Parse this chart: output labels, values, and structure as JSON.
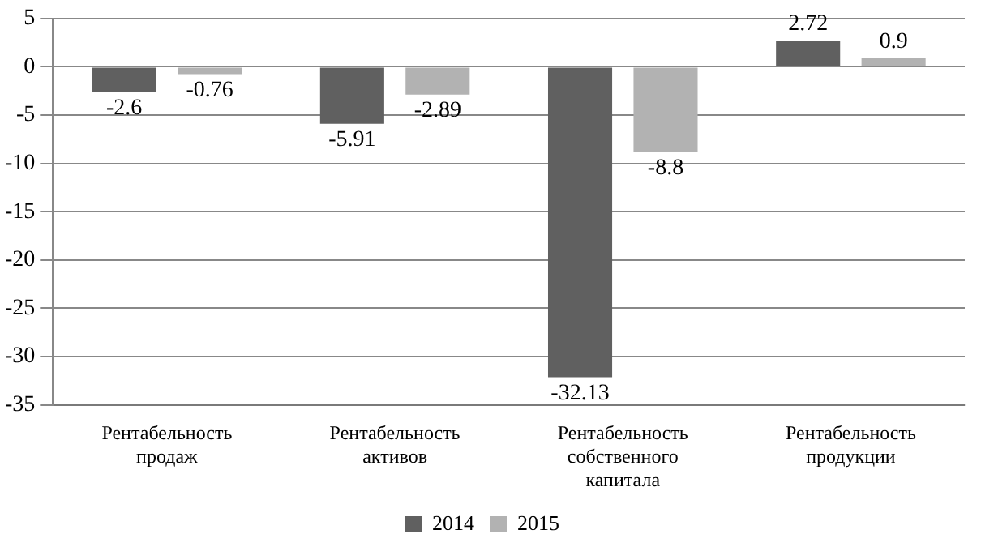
{
  "chart_data": {
    "type": "bar",
    "categories": [
      "Рентабельность продаж",
      "Рентабельность активов",
      "Рентабельность собственного капитала",
      "Рентабельность продукции"
    ],
    "series": [
      {
        "name": "2014",
        "color": "#606060",
        "values": [
          -2.6,
          -5.91,
          -32.13,
          2.72
        ]
      },
      {
        "name": "2015",
        "color": "#b2b2b2",
        "values": [
          -0.76,
          -2.89,
          -8.8,
          0.9
        ]
      }
    ],
    "ylim": [
      -35,
      5
    ],
    "yticks": [
      -35,
      -30,
      -25,
      -20,
      -15,
      -10,
      -5,
      0,
      5
    ],
    "grid": "y",
    "legend": "bottom",
    "data_labels": true
  }
}
